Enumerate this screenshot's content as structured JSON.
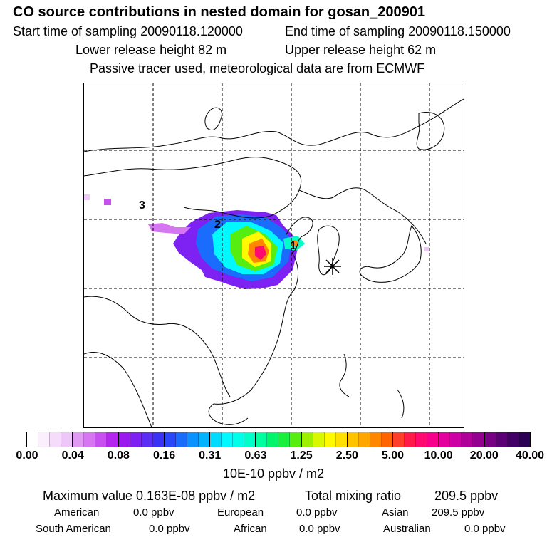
{
  "header": {
    "title": "CO  source contributions in nested domain for gosan_200901",
    "start_time": "Start time of sampling 20090118.120000",
    "end_time": "End time of sampling 20090118.150000",
    "lower_release": "Lower release height   82 m",
    "upper_release": "Upper release height   62 m",
    "tracer_note": "Passive tracer used, meteorological data are from ECMWF"
  },
  "map": {
    "labels": [
      "1",
      "2",
      "3"
    ],
    "receptor_marker": "station-marker-icon"
  },
  "colorbar": {
    "ticks": [
      "0.00",
      "0.04",
      "0.08",
      "0.16",
      "0.31",
      "0.63",
      "1.25",
      "2.50",
      "5.00",
      "10.00",
      "20.00",
      "40.00"
    ],
    "unit": "10E-10 ppbv / m2",
    "colors": [
      "#ffffff",
      "#fbeefd",
      "#f5dcfb",
      "#efc6f9",
      "#e09af4",
      "#d676f2",
      "#c84ff0",
      "#b526ee",
      "#9a1aef",
      "#7d22f2",
      "#5c2ef5",
      "#3b32f8",
      "#2a48fa",
      "#1a6cfc",
      "#0a92fe",
      "#00b4ff",
      "#00dcff",
      "#00f8ff",
      "#00ffe8",
      "#00ffc8",
      "#00ff9e",
      "#00f56a",
      "#19f03c",
      "#56ee10",
      "#9cf000",
      "#d8f800",
      "#fffa00",
      "#ffe000",
      "#ffc400",
      "#ffa600",
      "#ff8600",
      "#ff6400",
      "#ff3e2a",
      "#ff1a4a",
      "#ff0a6e",
      "#f8008c",
      "#e4009e",
      "#cc00a4",
      "#b0009a",
      "#940090",
      "#780084",
      "#5c0078",
      "#420066",
      "#2c0052"
    ]
  },
  "summary": {
    "max_label": "Maximum value  0.163E-08 ppbv / m2",
    "total_label": "Total mixing ratio",
    "total_value": "209.5 ppbv",
    "regions": [
      {
        "name": "American",
        "value": "0.0 ppbv"
      },
      {
        "name": "European",
        "value": "0.0 ppbv"
      },
      {
        "name": "Asian",
        "value": "209.5 ppbv"
      },
      {
        "name": "South American",
        "value": "0.0 ppbv"
      },
      {
        "name": "African",
        "value": "0.0 ppbv"
      },
      {
        "name": "Australian",
        "value": "0.0 ppbv"
      }
    ]
  }
}
